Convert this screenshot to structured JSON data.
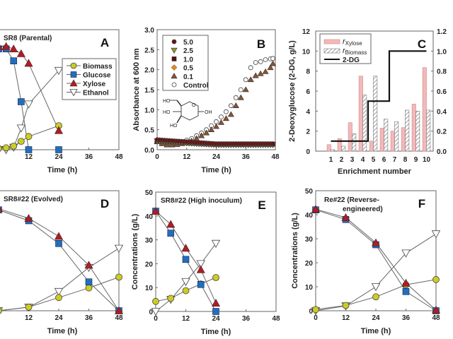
{
  "colors": {
    "biomass": "#cccc22",
    "glucose": "#1f6fc0",
    "xylose": "#b01c24",
    "ethanol": "#ffffff",
    "line": "#666666",
    "bar_xylose": "#f4b8b8",
    "c5": "#6b1010",
    "c25": "#9a9a2a",
    "c1": "#5a1010",
    "c05": "#e08a20",
    "c01": "#7a5a3a"
  },
  "chart_data": [
    {
      "panel": "A",
      "type": "line",
      "title": "SR8 (Parental)",
      "letter": "A",
      "xlabel": "Time (h)",
      "ylabel": "",
      "xlim": [
        0,
        48
      ],
      "ylim": [
        0,
        50
      ],
      "xticks": [
        "12",
        "24",
        "36",
        "48"
      ],
      "yticks": [],
      "legend": [
        "Biomass",
        "Glucose",
        "Xylose",
        "Ethanol"
      ],
      "legend_position": "center-right",
      "series": [
        {
          "name": "Biomass",
          "x": [
            0,
            3,
            6,
            9,
            12,
            24
          ],
          "y": [
            0.5,
            0.8,
            1.5,
            3.5,
            5.5,
            10
          ]
        },
        {
          "name": "Glucose",
          "x": [
            0,
            3,
            6,
            9,
            12,
            24
          ],
          "y": [
            42,
            42,
            37,
            20,
            0,
            0
          ]
        },
        {
          "name": "Xylose",
          "x": [
            0,
            3,
            6,
            9,
            12,
            24
          ],
          "y": [
            43,
            43,
            42,
            40,
            36,
            8
          ]
        },
        {
          "name": "Ethanol",
          "x": [
            0,
            3,
            6,
            9,
            12,
            24
          ],
          "y": [
            0,
            0,
            1,
            9,
            19,
            33
          ]
        }
      ]
    },
    {
      "panel": "B",
      "type": "scatter",
      "title": "",
      "letter": "B",
      "xlabel": "Time (h)",
      "ylabel": "Absorbance at 600 nm",
      "xlim": [
        0,
        48
      ],
      "ylim": [
        0,
        3.0
      ],
      "xticks": [
        "0",
        "12",
        "24",
        "36",
        "48"
      ],
      "yticks": [
        "0.0",
        "0.5",
        "1.0",
        "1.5",
        "2.0",
        "2.5",
        "3.0"
      ],
      "legend": [
        "5.0",
        "2.5",
        "1.0",
        "0.5",
        "0.1",
        "Control"
      ],
      "legend_position": "top-left",
      "inset": "2-deoxyglucose structure",
      "inset_labels": [
        "HO",
        "HO",
        "OH",
        "HO",
        "O"
      ],
      "series": [
        {
          "name": "5.0",
          "x": [
            0,
            24,
            48
          ],
          "y": [
            0.25,
            0.15,
            0.15
          ]
        },
        {
          "name": "2.5",
          "x": [
            0,
            24,
            48
          ],
          "y": [
            0.22,
            0.13,
            0.13
          ]
        },
        {
          "name": "1.0",
          "x": [
            0,
            24,
            48
          ],
          "y": [
            0.22,
            0.14,
            0.14
          ]
        },
        {
          "name": "0.5",
          "x": [
            0,
            24,
            48
          ],
          "y": [
            0.2,
            0.12,
            0.12
          ]
        },
        {
          "name": "0.1",
          "x": [
            0,
            2,
            4,
            6,
            8,
            10,
            12,
            14,
            16,
            18,
            20,
            22,
            24,
            26,
            28,
            30,
            32,
            34,
            36,
            38,
            40,
            42,
            44,
            46,
            47
          ],
          "y": [
            0.2,
            0.15,
            0.12,
            0.12,
            0.13,
            0.15,
            0.18,
            0.22,
            0.28,
            0.35,
            0.42,
            0.5,
            0.58,
            0.68,
            0.78,
            0.88,
            1.1,
            1.3,
            1.5,
            1.75,
            1.85,
            1.9,
            1.95,
            2.05,
            2.15
          ]
        },
        {
          "name": "Control",
          "x": [
            0,
            2,
            4,
            6,
            8,
            10,
            12,
            14,
            16,
            18,
            20,
            22,
            24,
            26,
            28,
            30,
            32,
            34,
            36,
            38,
            40,
            42,
            44,
            46,
            47
          ],
          "y": [
            0.2,
            0.15,
            0.15,
            0.16,
            0.18,
            0.2,
            0.24,
            0.28,
            0.35,
            0.42,
            0.5,
            0.6,
            0.7,
            0.82,
            0.95,
            1.1,
            1.3,
            1.5,
            1.75,
            2.05,
            2.18,
            2.2,
            2.25,
            2.27,
            2.28
          ]
        }
      ]
    },
    {
      "panel": "C",
      "type": "bar",
      "title": "",
      "letter": "C",
      "xlabel": "Enrichment number",
      "ylabel": "2-Deoxyglucose (2-DG, g/L)",
      "categories": [
        "1",
        "2",
        "3",
        "4",
        "5",
        "6",
        "7",
        "8",
        "9",
        "10"
      ],
      "ylim": [
        0,
        12
      ],
      "y2lim": [
        0,
        1.2
      ],
      "yticks": [
        "0",
        "2",
        "4",
        "6",
        "8",
        "10",
        "12"
      ],
      "y2ticks": [
        "0.0",
        "0.2",
        "0.4",
        "0.6",
        "0.8",
        "1.0",
        "1.2"
      ],
      "legend": [
        "rXylose",
        "rBiomass",
        "2-DG"
      ],
      "legend_position": "top-left",
      "series": [
        {
          "name": "rXylose",
          "axis": "right",
          "values": [
            0.065,
            0.125,
            0.285,
            0.75,
            0.1,
            0.23,
            0.2,
            0.235,
            0.47,
            0.835
          ]
        },
        {
          "name": "rBiomass",
          "axis": "right",
          "values": [
            0.015,
            0.05,
            0.175,
            0.56,
            0.75,
            0.32,
            0.295,
            0.41,
            0.4,
            0.41
          ]
        },
        {
          "name": "2-DG",
          "axis": "left",
          "values": [
            1,
            1,
            1,
            1,
            5,
            5,
            10,
            10,
            10,
            10
          ]
        }
      ]
    },
    {
      "panel": "D",
      "type": "line",
      "title": "SR8#22 (Evolved)",
      "letter": "D",
      "xlabel": "Time (h)",
      "ylabel": "",
      "xlim": [
        0,
        48
      ],
      "ylim": [
        0,
        50
      ],
      "xticks": [
        "12",
        "24",
        "36",
        "48"
      ],
      "yticks": [],
      "series": [
        {
          "name": "Biomass",
          "x": [
            0,
            12,
            24,
            36,
            48
          ],
          "y": [
            0,
            1.5,
            5.5,
            9.5,
            14
          ]
        },
        {
          "name": "Glucose",
          "x": [
            0,
            12,
            24,
            36,
            48
          ],
          "y": [
            42,
            37.5,
            28,
            12,
            0
          ]
        },
        {
          "name": "Xylose",
          "x": [
            0,
            12,
            24,
            36,
            48
          ],
          "y": [
            42.5,
            38.5,
            31,
            19,
            0
          ]
        },
        {
          "name": "Ethanol",
          "x": [
            0,
            12,
            24,
            36,
            48
          ],
          "y": [
            0,
            1.5,
            8,
            18,
            26
          ]
        }
      ]
    },
    {
      "panel": "E",
      "type": "line",
      "title": "SR8#22 (High inoculum)",
      "letter": "E",
      "xlabel": "Time (h)",
      "ylabel": "Concentrations (g/L)",
      "xlim": [
        0,
        48
      ],
      "ylim": [
        0,
        50
      ],
      "xticks": [
        "0",
        "12",
        "24",
        "36",
        "48"
      ],
      "yticks": [
        "0",
        "10",
        "20",
        "30",
        "40",
        "50"
      ],
      "series": [
        {
          "name": "Biomass",
          "x": [
            0,
            6,
            12,
            18,
            24
          ],
          "y": [
            4.2,
            5.5,
            8.7,
            11.5,
            14.2
          ]
        },
        {
          "name": "Glucose",
          "x": [
            0,
            6,
            12,
            18,
            24
          ],
          "y": [
            42,
            32.8,
            21.8,
            11.3,
            0
          ]
        },
        {
          "name": "Xylose",
          "x": [
            0,
            6,
            12,
            18,
            24
          ],
          "y": [
            42,
            36.5,
            26.5,
            17.5,
            3.5
          ]
        },
        {
          "name": "Ethanol",
          "x": [
            0,
            6,
            12,
            18,
            24
          ],
          "y": [
            0,
            5,
            12.5,
            20,
            28.5
          ]
        }
      ]
    },
    {
      "panel": "F",
      "type": "line",
      "title": "Re#22 (Reverse-engineered)",
      "title_lines": [
        "Re#22 (Reverse-",
        "engineered)"
      ],
      "letter": "F",
      "xlabel": "Time (h)",
      "ylabel": "Concentrations (g/L)",
      "xlim": [
        0,
        48
      ],
      "ylim": [
        0,
        50
      ],
      "xticks": [
        "0",
        "12",
        "24",
        "36",
        "48"
      ],
      "yticks": [
        "0",
        "10",
        "20",
        "30",
        "40",
        "50"
      ],
      "series": [
        {
          "name": "Biomass",
          "x": [
            0,
            12,
            24,
            36,
            48
          ],
          "y": [
            0.5,
            2.2,
            5.8,
            10.8,
            13
          ]
        },
        {
          "name": "Glucose",
          "x": [
            0,
            12,
            24,
            36,
            48
          ],
          "y": [
            42,
            38,
            27.5,
            8,
            0
          ]
        },
        {
          "name": "Xylose",
          "x": [
            0,
            12,
            24,
            36,
            48
          ],
          "y": [
            42.3,
            38.8,
            28.3,
            11.5,
            0.3
          ]
        },
        {
          "name": "Ethanol",
          "x": [
            0,
            12,
            24,
            36,
            48
          ],
          "y": [
            0,
            2,
            10,
            24,
            32
          ]
        }
      ]
    }
  ]
}
